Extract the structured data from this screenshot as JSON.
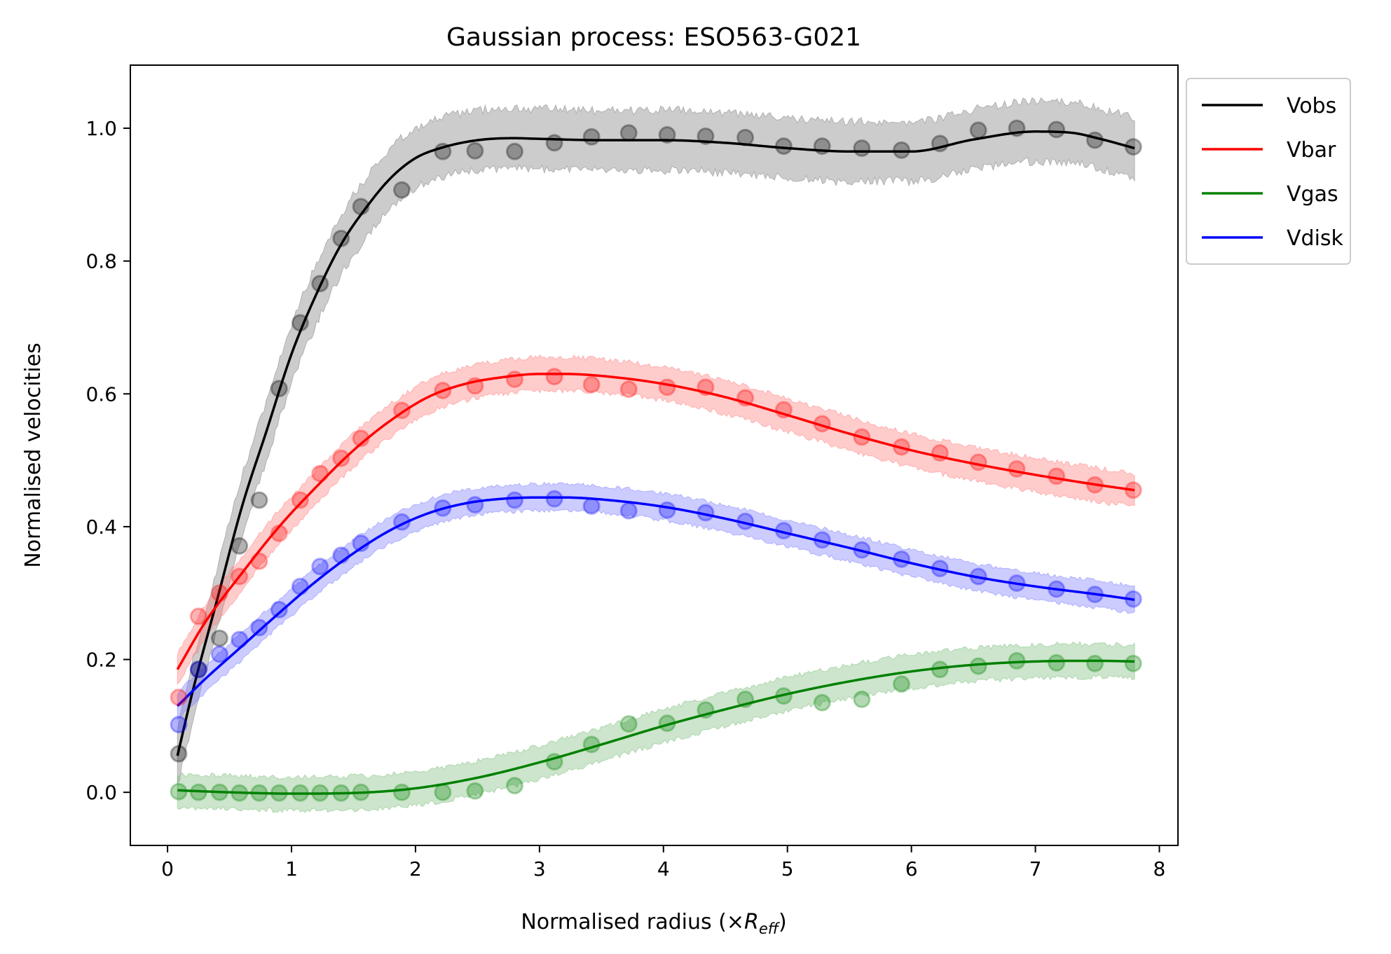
{
  "chart_data": {
    "type": "line",
    "title": "Gaussian process: ESO563-G021",
    "xlabel": {
      "main": "Normalised radius (×",
      "var": "R",
      "sub": "eff",
      "close": ")"
    },
    "ylabel": "Normalised velocities",
    "xlim": [
      -0.3,
      8.15
    ],
    "ylim": [
      -0.08,
      1.095
    ],
    "xticks": [
      0,
      1,
      2,
      3,
      4,
      5,
      6,
      7,
      8
    ],
    "xtick_labels": [
      "0",
      "1",
      "2",
      "3",
      "4",
      "5",
      "6",
      "7",
      "8"
    ],
    "yticks": [
      0.0,
      0.2,
      0.4,
      0.6,
      0.8,
      1.0
    ],
    "ytick_labels": [
      "0.0",
      "0.2",
      "0.4",
      "0.6",
      "0.8",
      "1.0"
    ],
    "grid": false,
    "legend_position": "outside-top-right",
    "band_type": "confidence band around fitted curve",
    "series": [
      {
        "name": "Vobs",
        "color": "#000000",
        "band_color": "#808080",
        "band_halfwidth": 0.045,
        "points_x": [
          0.09,
          0.25,
          0.42,
          0.58,
          0.74,
          0.9,
          1.07,
          1.23,
          1.4,
          1.56,
          1.89,
          2.22,
          2.48,
          2.8,
          3.12,
          3.42,
          3.72,
          4.03,
          4.34,
          4.66,
          4.97,
          5.28,
          5.6,
          5.92,
          6.23,
          6.54,
          6.85,
          7.17,
          7.48,
          7.79
        ],
        "points_y": [
          0.058,
          0.185,
          0.232,
          0.371,
          0.44,
          0.608,
          0.707,
          0.766,
          0.834,
          0.882,
          0.907,
          0.965,
          0.966,
          0.965,
          0.978,
          0.987,
          0.993,
          0.99,
          0.988,
          0.986,
          0.973,
          0.973,
          0.97,
          0.967,
          0.977,
          0.997,
          1.0,
          0.998,
          0.982,
          0.972
        ],
        "curve_x": [
          0.08,
          0.2,
          0.4,
          0.6,
          0.8,
          1.0,
          1.2,
          1.4,
          1.6,
          1.8,
          2.0,
          2.2,
          2.5,
          2.8,
          3.0,
          3.5,
          4.0,
          4.5,
          5.0,
          5.5,
          6.0,
          6.5,
          7.0,
          7.3,
          7.5,
          7.8
        ],
        "curve_y": [
          0.055,
          0.15,
          0.29,
          0.43,
          0.545,
          0.66,
          0.75,
          0.825,
          0.88,
          0.925,
          0.955,
          0.97,
          0.982,
          0.985,
          0.984,
          0.982,
          0.982,
          0.978,
          0.97,
          0.965,
          0.965,
          0.983,
          0.995,
          0.993,
          0.985,
          0.97
        ]
      },
      {
        "name": "Vbar",
        "color": "#ff0000",
        "band_color": "#ff7f7f",
        "band_halfwidth": 0.025,
        "points_x": [
          0.09,
          0.25,
          0.42,
          0.58,
          0.74,
          0.9,
          1.07,
          1.23,
          1.4,
          1.56,
          1.89,
          2.22,
          2.48,
          2.8,
          3.12,
          3.42,
          3.72,
          4.03,
          4.34,
          4.66,
          4.97,
          5.28,
          5.6,
          5.92,
          6.23,
          6.54,
          6.85,
          7.17,
          7.48,
          7.79
        ],
        "points_y": [
          0.143,
          0.265,
          0.3,
          0.325,
          0.348,
          0.39,
          0.44,
          0.48,
          0.503,
          0.533,
          0.575,
          0.605,
          0.612,
          0.622,
          0.626,
          0.614,
          0.607,
          0.61,
          0.61,
          0.594,
          0.576,
          0.555,
          0.535,
          0.52,
          0.511,
          0.497,
          0.487,
          0.476,
          0.463,
          0.455
        ],
        "curve_x": [
          0.08,
          0.3,
          0.6,
          0.9,
          1.2,
          1.5,
          1.8,
          2.1,
          2.4,
          2.7,
          3.0,
          3.2,
          3.5,
          4.0,
          4.5,
          5.0,
          5.5,
          6.0,
          6.5,
          7.0,
          7.5,
          7.8
        ],
        "curve_y": [
          0.185,
          0.255,
          0.33,
          0.4,
          0.46,
          0.515,
          0.56,
          0.595,
          0.615,
          0.625,
          0.63,
          0.63,
          0.627,
          0.615,
          0.595,
          0.568,
          0.54,
          0.515,
          0.495,
          0.478,
          0.463,
          0.455
        ]
      },
      {
        "name": "Vgas",
        "color": "#008000",
        "band_color": "#7fbf7f",
        "band_halfwidth": 0.025,
        "points_x": [
          0.09,
          0.25,
          0.42,
          0.58,
          0.74,
          0.9,
          1.07,
          1.23,
          1.4,
          1.56,
          1.89,
          2.22,
          2.48,
          2.8,
          3.12,
          3.42,
          3.72,
          4.03,
          4.34,
          4.66,
          4.97,
          5.28,
          5.6,
          5.92,
          6.23,
          6.54,
          6.85,
          7.17,
          7.48,
          7.79
        ],
        "points_y": [
          0.001,
          0.0,
          0.0,
          -0.001,
          -0.001,
          -0.001,
          -0.001,
          -0.001,
          -0.001,
          0.0,
          0.0,
          0.0,
          0.002,
          0.01,
          0.046,
          0.072,
          0.103,
          0.104,
          0.124,
          0.14,
          0.145,
          0.135,
          0.14,
          0.163,
          0.185,
          0.19,
          0.198,
          0.195,
          0.194,
          0.194
        ],
        "curve_x": [
          0.08,
          0.5,
          1.0,
          1.5,
          2.0,
          2.5,
          3.0,
          3.5,
          4.0,
          4.5,
          5.0,
          5.5,
          6.0,
          6.5,
          7.0,
          7.5,
          7.8
        ],
        "curve_y": [
          0.003,
          0.0,
          -0.002,
          -0.001,
          0.006,
          0.022,
          0.045,
          0.072,
          0.1,
          0.125,
          0.148,
          0.167,
          0.182,
          0.192,
          0.197,
          0.198,
          0.197
        ]
      },
      {
        "name": "Vdisk",
        "color": "#0000ff",
        "band_color": "#7f7fff",
        "band_halfwidth": 0.02,
        "points_x": [
          0.09,
          0.25,
          0.42,
          0.58,
          0.74,
          0.9,
          1.07,
          1.23,
          1.4,
          1.56,
          1.89,
          2.22,
          2.48,
          2.8,
          3.12,
          3.42,
          3.72,
          4.03,
          4.34,
          4.66,
          4.97,
          5.28,
          5.6,
          5.92,
          6.23,
          6.54,
          6.85,
          7.17,
          7.48,
          7.79
        ],
        "points_y": [
          0.102,
          0.185,
          0.208,
          0.23,
          0.248,
          0.275,
          0.31,
          0.34,
          0.357,
          0.375,
          0.407,
          0.428,
          0.433,
          0.44,
          0.442,
          0.431,
          0.424,
          0.425,
          0.421,
          0.408,
          0.394,
          0.38,
          0.365,
          0.351,
          0.337,
          0.325,
          0.315,
          0.306,
          0.298,
          0.291
        ],
        "curve_x": [
          0.08,
          0.3,
          0.6,
          0.9,
          1.2,
          1.5,
          1.8,
          2.1,
          2.4,
          2.7,
          3.0,
          3.2,
          3.5,
          4.0,
          4.5,
          5.0,
          5.5,
          6.0,
          6.5,
          7.0,
          7.5,
          7.8
        ],
        "curve_y": [
          0.13,
          0.17,
          0.22,
          0.27,
          0.318,
          0.36,
          0.395,
          0.42,
          0.435,
          0.442,
          0.444,
          0.444,
          0.441,
          0.43,
          0.412,
          0.39,
          0.368,
          0.345,
          0.325,
          0.31,
          0.298,
          0.29
        ]
      }
    ]
  }
}
